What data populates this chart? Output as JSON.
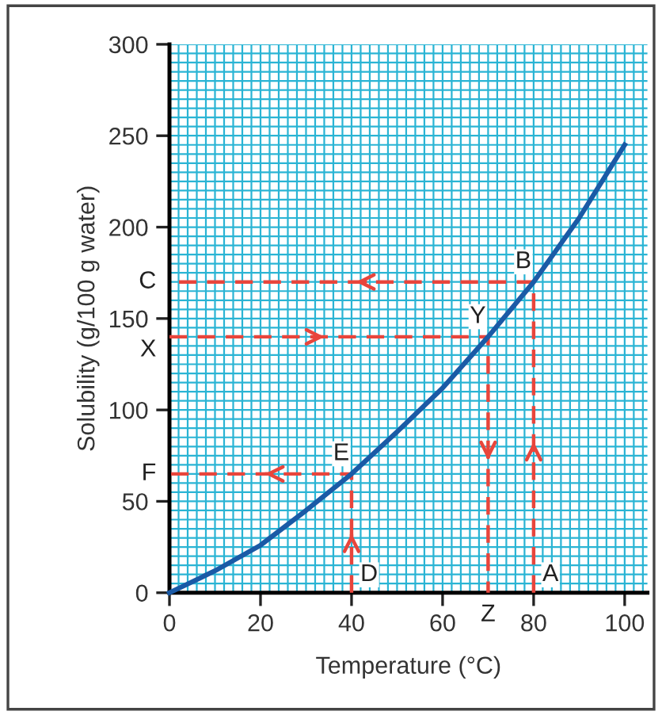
{
  "chart_data": {
    "type": "line",
    "xlabel": "Temperature (°C)",
    "ylabel": "Solubility (g/100 g water)",
    "xlim": [
      0,
      105
    ],
    "ylim": [
      0,
      300
    ],
    "xticks": [
      0,
      20,
      40,
      60,
      80,
      100
    ],
    "yticks": [
      0,
      50,
      100,
      150,
      200,
      250,
      300
    ],
    "grid": true,
    "series": [
      {
        "color": "#1a5aa6",
        "line_style": "solid",
        "x": [
          0,
          10,
          20,
          30,
          40,
          50,
          60,
          70,
          80,
          90,
          100
        ],
        "values": [
          0,
          12,
          26,
          45,
          65,
          88,
          112,
          140,
          170,
          205,
          245
        ]
      },
      {
        "color": "#e8453c",
        "line_style": "dashed",
        "x": [
          80,
          80,
          0
        ],
        "values": [
          0,
          170,
          170
        ]
      },
      {
        "color": "#e8453c",
        "line_style": "dashed",
        "x": [
          0,
          70,
          70
        ],
        "values": [
          140,
          140,
          0
        ]
      },
      {
        "color": "#e8453c",
        "line_style": "dashed",
        "x": [
          40,
          40,
          0
        ],
        "values": [
          0,
          65,
          65
        ]
      }
    ],
    "annotations": [
      {
        "text": "A",
        "x": 80,
        "y": 0
      },
      {
        "text": "B",
        "x": 80,
        "y": 170
      },
      {
        "text": "C",
        "x": 0,
        "y": 170
      },
      {
        "text": "D",
        "x": 40,
        "y": 0
      },
      {
        "text": "E",
        "x": 40,
        "y": 65
      },
      {
        "text": "F",
        "x": 0,
        "y": 65
      },
      {
        "text": "X",
        "x": 0,
        "y": 140
      },
      {
        "text": "Y",
        "x": 70,
        "y": 140
      },
      {
        "text": "Z",
        "x": 70,
        "y": 0
      }
    ]
  }
}
